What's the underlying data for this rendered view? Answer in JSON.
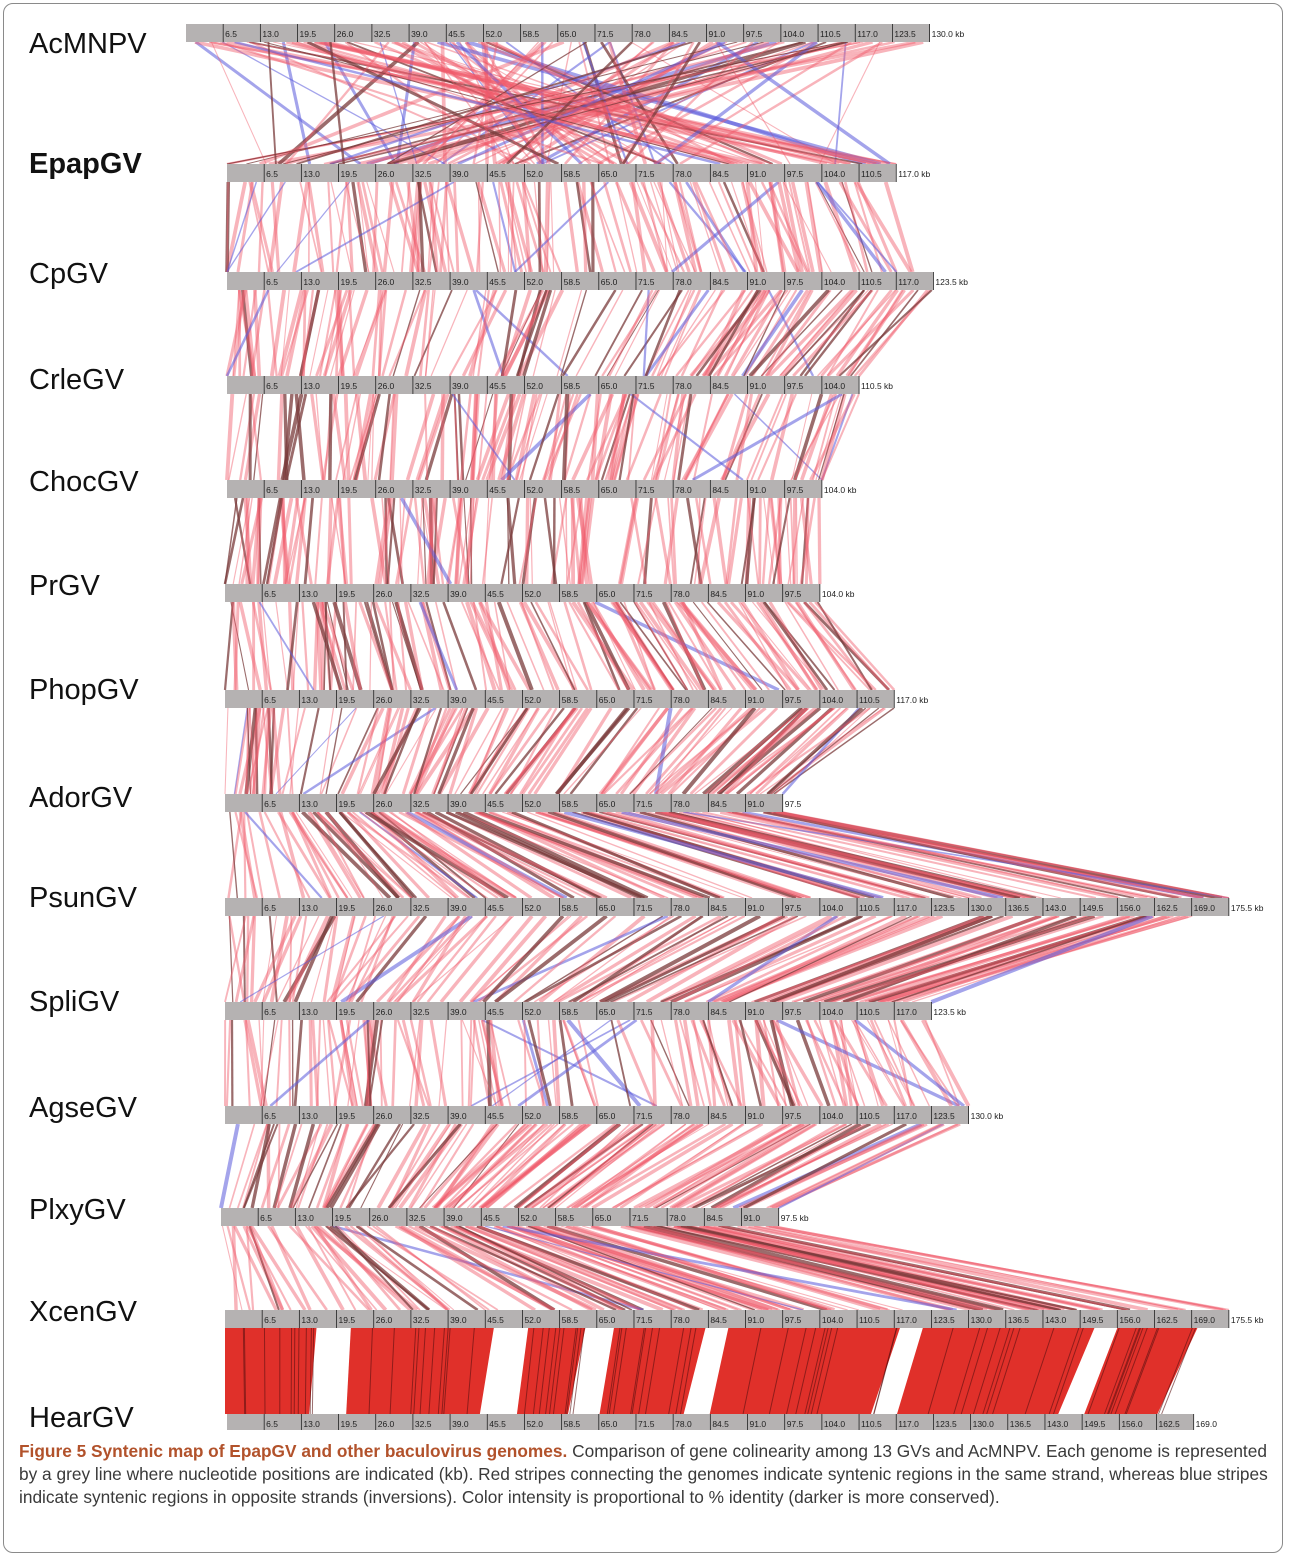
{
  "figure": {
    "genomes": [
      {
        "name": "AcMNPV",
        "bold": false,
        "length_kb": 130.0,
        "ticks": [
          "6.5",
          "13.0",
          "19.5",
          "26.0",
          "32.5",
          "39.0",
          "45.5",
          "52.0",
          "58.5",
          "65.0",
          "71.5",
          "78.0",
          "84.5",
          "91.0",
          "97.5",
          "104.0",
          "110.5",
          "117.0",
          "123.5",
          "130.0 kb"
        ]
      },
      {
        "name": "EpapGV",
        "bold": true,
        "length_kb": 117.0,
        "ticks": [
          "6.5",
          "13.0",
          "19.5",
          "26.0",
          "32.5",
          "39.0",
          "45.5",
          "52.0",
          "58.5",
          "65.0",
          "71.5",
          "78.0",
          "84.5",
          "91.0",
          "97.5",
          "104.0",
          "110.5",
          "117.0 kb"
        ]
      },
      {
        "name": "CpGV",
        "bold": false,
        "length_kb": 123.5,
        "ticks": [
          "6.5",
          "13.0",
          "19.5",
          "26.0",
          "32.5",
          "39.0",
          "45.5",
          "52.0",
          "58.5",
          "65.0",
          "71.5",
          "78.0",
          "84.5",
          "91.0",
          "97.5",
          "104.0",
          "110.5",
          "117.0",
          "123.5 kb"
        ]
      },
      {
        "name": "CrleGV",
        "bold": false,
        "length_kb": 110.5,
        "ticks": [
          "6.5",
          "13.0",
          "19.5",
          "26.0",
          "32.5",
          "39.0",
          "45.5",
          "52.0",
          "58.5",
          "65.0",
          "71.5",
          "78.0",
          "84.5",
          "91.0",
          "97.5",
          "104.0",
          "110.5 kb"
        ]
      },
      {
        "name": "ChocGV",
        "bold": false,
        "length_kb": 104.0,
        "ticks": [
          "6.5",
          "13.0",
          "19.5",
          "26.0",
          "32.5",
          "39.0",
          "45.5",
          "52.0",
          "58.5",
          "65.0",
          "71.5",
          "78.0",
          "84.5",
          "91.0",
          "97.5",
          "104.0 kb"
        ]
      },
      {
        "name": "PrGV",
        "bold": false,
        "length_kb": 104.0,
        "ticks": [
          "6.5",
          "13.0",
          "19.5",
          "26.0",
          "32.5",
          "39.0",
          "45.5",
          "52.0",
          "58.5",
          "65.0",
          "71.5",
          "78.0",
          "84.5",
          "91.0",
          "97.5",
          "104.0 kb"
        ]
      },
      {
        "name": "PhopGV",
        "bold": false,
        "length_kb": 117.0,
        "ticks": [
          "6.5",
          "13.0",
          "19.5",
          "26.0",
          "32.5",
          "39.0",
          "45.5",
          "52.0",
          "58.5",
          "65.0",
          "71.5",
          "78.0",
          "84.5",
          "91.0",
          "97.5",
          "104.0",
          "110.5",
          "117.0 kb"
        ]
      },
      {
        "name": "AdorGV",
        "bold": false,
        "length_kb": 97.5,
        "ticks": [
          "6.5",
          "13.0",
          "19.5",
          "26.0",
          "32.5",
          "39.0",
          "45.5",
          "52.0",
          "58.5",
          "65.0",
          "71.5",
          "78.0",
          "84.5",
          "91.0",
          "97.5"
        ]
      },
      {
        "name": "PsunGV",
        "bold": false,
        "length_kb": 175.5,
        "ticks": [
          "6.5",
          "13.0",
          "19.5",
          "26.0",
          "32.5",
          "39.0",
          "45.5",
          "52.0",
          "58.5",
          "65.0",
          "71.5",
          "78.0",
          "84.5",
          "91.0",
          "97.5",
          "104.0",
          "110.5",
          "117.0",
          "123.5",
          "130.0",
          "136.5",
          "143.0",
          "149.5",
          "156.0",
          "162.5",
          "169.0",
          "175.5 kb"
        ]
      },
      {
        "name": "SpliGV",
        "bold": false,
        "length_kb": 123.5,
        "ticks": [
          "6.5",
          "13.0",
          "19.5",
          "26.0",
          "32.5",
          "39.0",
          "45.5",
          "52.0",
          "58.5",
          "65.0",
          "71.5",
          "78.0",
          "84.5",
          "91.0",
          "97.5",
          "104.0",
          "110.5",
          "117.0",
          "123.5 kb"
        ]
      },
      {
        "name": "AgseGV",
        "bold": false,
        "length_kb": 130.0,
        "ticks": [
          "6.5",
          "13.0",
          "19.5",
          "26.0",
          "32.5",
          "39.0",
          "45.5",
          "52.0",
          "58.5",
          "65.0",
          "71.5",
          "78.0",
          "84.5",
          "91.0",
          "97.5",
          "104.0",
          "110.5",
          "117.0",
          "123.5",
          "130.0 kb"
        ]
      },
      {
        "name": "PlxyGV",
        "bold": false,
        "length_kb": 97.5,
        "ticks": [
          "6.5",
          "13.0",
          "19.5",
          "26.0",
          "32.5",
          "39.0",
          "45.5",
          "52.0",
          "58.5",
          "65.0",
          "71.5",
          "78.0",
          "84.5",
          "91.0",
          "97.5 kb"
        ]
      },
      {
        "name": "XcenGV",
        "bold": false,
        "length_kb": 175.5,
        "ticks": [
          "6.5",
          "13.0",
          "19.5",
          "26.0",
          "32.5",
          "39.0",
          "45.5",
          "52.0",
          "58.5",
          "65.0",
          "71.5",
          "78.0",
          "84.5",
          "91.0",
          "97.5",
          "104.0",
          "110.5",
          "117.0",
          "123.5",
          "130.0",
          "136.5",
          "143.0",
          "149.5",
          "156.0",
          "162.5",
          "169.0",
          "175.5 kb"
        ]
      },
      {
        "name": "HearGV",
        "bold": false,
        "length_kb": 169.0,
        "ticks": [
          "6.5",
          "13.0",
          "19.5",
          "26.0",
          "32.5",
          "39.0",
          "45.5",
          "52.0",
          "58.5",
          "65.0",
          "71.5",
          "78.0",
          "84.5",
          "91.0",
          "97.5",
          "104.0",
          "110.5",
          "117.0",
          "123.5",
          "130.0",
          "136.5",
          "143.0",
          "149.5",
          "156.0",
          "162.5",
          "169.0"
        ]
      }
    ],
    "colors": {
      "genome_bar": "#b5b2b2",
      "same_strand": "#f05a6a",
      "same_strand_conserved": "#7a3b3b",
      "inversion": "#5a5adc",
      "xcen_block": "#e0302a"
    }
  },
  "caption": {
    "title": "Figure 5 Syntenic map of EpapGV and other baculovirus genomes.",
    "text": " Comparison of gene colinearity among 13 GVs and AcMNPV. Each genome is represented by a grey line where nucleotide positions are indicated (kb). Red stripes connecting the genomes indicate syntenic regions in the same strand, whereas blue stripes indicate syntenic regions in opposite strands (inversions). Color intensity is proportional to % identity (darker is more conserved)."
  }
}
